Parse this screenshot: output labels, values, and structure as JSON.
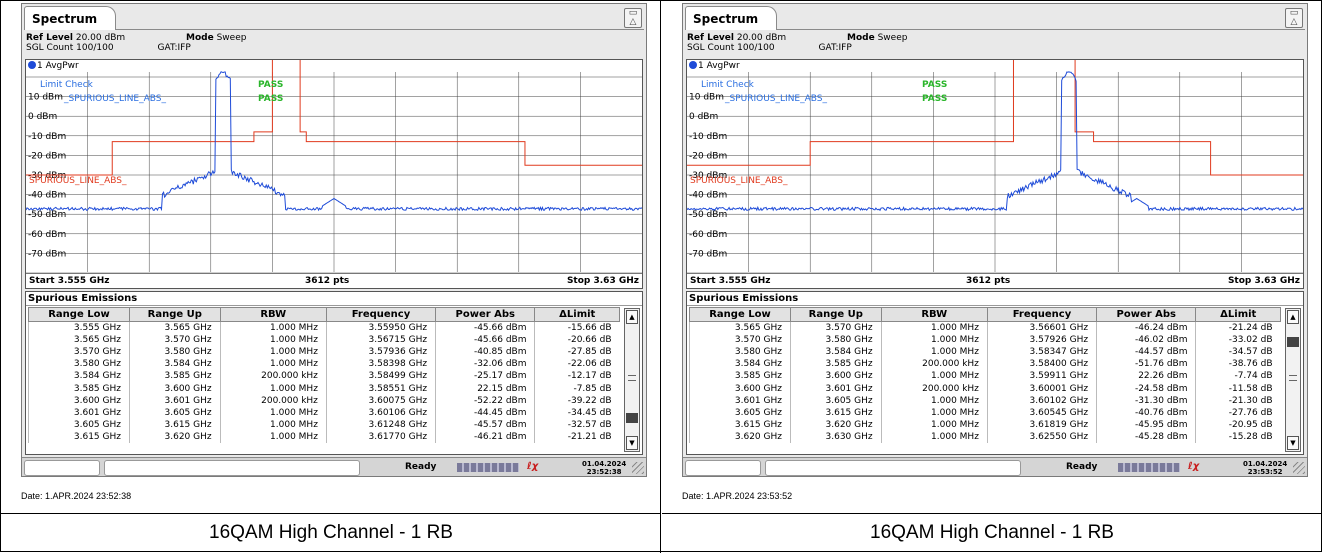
{
  "panels": [
    {
      "tab_title": "Spectrum",
      "ref_level_label": "Ref Level",
      "ref_level_value": "20.00 dBm",
      "mode_label": "Mode",
      "mode_value": "Sweep",
      "sgl_count": "SGL Count 100/100",
      "gat": "GAT:IFP",
      "trace_label": "1 AvgPwr",
      "limit_check": "Limit Check",
      "limit_check_status": "PASS",
      "limit_line_name": "_SPURIOUS_LINE_ABS_",
      "limit_line_status": "PASS",
      "line_label": "SPURIOUS_LINE_ABS_",
      "y_ticks": [
        "10 dBm",
        "0 dBm",
        "-10 dBm",
        "-20 dBm",
        "-30 dBm",
        "-40 dBm",
        "-50 dBm",
        "-60 dBm",
        "-70 dBm"
      ],
      "start": "Start 3.555 GHz",
      "pts": "3612 pts",
      "stop": "Stop 3.63 GHz",
      "table_title": "Spurious Emissions",
      "columns": [
        "Range Low",
        "Range Up",
        "RBW",
        "Frequency",
        "Power Abs",
        "ΔLimit"
      ],
      "rows": [
        [
          "3.555 GHz",
          "3.565 GHz",
          "1.000 MHz",
          "3.55950 GHz",
          "-45.66 dBm",
          "-15.66 dB"
        ],
        [
          "3.565 GHz",
          "3.570 GHz",
          "1.000 MHz",
          "3.56715 GHz",
          "-45.66 dBm",
          "-20.66 dB"
        ],
        [
          "3.570 GHz",
          "3.580 GHz",
          "1.000 MHz",
          "3.57936 GHz",
          "-40.85 dBm",
          "-27.85 dB"
        ],
        [
          "3.580 GHz",
          "3.584 GHz",
          "1.000 MHz",
          "3.58398 GHz",
          "-32.06 dBm",
          "-22.06 dB"
        ],
        [
          "3.584 GHz",
          "3.585 GHz",
          "200.000 kHz",
          "3.58499 GHz",
          "-25.17 dBm",
          "-12.17 dB"
        ],
        [
          "3.585 GHz",
          "3.600 GHz",
          "1.000 MHz",
          "3.58551 GHz",
          "22.15 dBm",
          "-7.85 dB"
        ],
        [
          "3.600 GHz",
          "3.601 GHz",
          "200.000 kHz",
          "3.60075 GHz",
          "-52.22 dBm",
          "-39.22 dB"
        ],
        [
          "3.601 GHz",
          "3.605 GHz",
          "1.000 MHz",
          "3.60106 GHz",
          "-44.45 dBm",
          "-34.45 dB"
        ],
        [
          "3.605 GHz",
          "3.615 GHz",
          "1.000 MHz",
          "3.61248 GHz",
          "-45.57 dBm",
          "-32.57 dB"
        ],
        [
          "3.615 GHz",
          "3.620 GHz",
          "1.000 MHz",
          "3.61770 GHz",
          "-46.21 dBm",
          "-21.21 dB"
        ]
      ],
      "scroll_thumb_fraction": 0.85,
      "status": "Ready",
      "date": "01.04.2024",
      "time": "23:52:38",
      "date_line": "Date: 1.APR.2024  23:52:38",
      "caption": "16QAM High Channel - 1 RB",
      "peak_pos_fraction": 0.32,
      "peak_power_dbm": 22.15
    },
    {
      "tab_title": "Spectrum",
      "ref_level_label": "Ref Level",
      "ref_level_value": "20.00 dBm",
      "mode_label": "Mode",
      "mode_value": "Sweep",
      "sgl_count": "SGL Count 100/100",
      "gat": "GAT:IFP",
      "trace_label": "1 AvgPwr",
      "limit_check": "Limit Check",
      "limit_check_status": "PASS",
      "limit_line_name": "_SPURIOUS_LINE_ABS_",
      "limit_line_status": "PASS",
      "line_label": "SPURIOUS_LINE_ABS_",
      "y_ticks": [
        "10 dBm",
        "0 dBm",
        "-10 dBm",
        "-20 dBm",
        "-30 dBm",
        "-40 dBm",
        "-50 dBm",
        "-60 dBm",
        "-70 dBm"
      ],
      "start": "Start 3.555 GHz",
      "pts": "3612 pts",
      "stop": "Stop 3.63 GHz",
      "table_title": "Spurious Emissions",
      "columns": [
        "Range Low",
        "Range Up",
        "RBW",
        "Frequency",
        "Power Abs",
        "ΔLimit"
      ],
      "rows": [
        [
          "3.565 GHz",
          "3.570 GHz",
          "1.000 MHz",
          "3.56601 GHz",
          "-46.24 dBm",
          "-21.24 dB"
        ],
        [
          "3.570 GHz",
          "3.580 GHz",
          "1.000 MHz",
          "3.57926 GHz",
          "-46.02 dBm",
          "-33.02 dB"
        ],
        [
          "3.580 GHz",
          "3.584 GHz",
          "1.000 MHz",
          "3.58347 GHz",
          "-44.57 dBm",
          "-34.57 dB"
        ],
        [
          "3.584 GHz",
          "3.585 GHz",
          "200.000 kHz",
          "3.58400 GHz",
          "-51.76 dBm",
          "-38.76 dB"
        ],
        [
          "3.585 GHz",
          "3.600 GHz",
          "1.000 MHz",
          "3.59911 GHz",
          "22.26 dBm",
          "-7.74 dB"
        ],
        [
          "3.600 GHz",
          "3.601 GHz",
          "200.000 kHz",
          "3.60001 GHz",
          "-24.58 dBm",
          "-11.58 dB"
        ],
        [
          "3.601 GHz",
          "3.605 GHz",
          "1.000 MHz",
          "3.60102 GHz",
          "-31.30 dBm",
          "-21.30 dB"
        ],
        [
          "3.605 GHz",
          "3.615 GHz",
          "1.000 MHz",
          "3.60545 GHz",
          "-40.76 dBm",
          "-27.76 dB"
        ],
        [
          "3.615 GHz",
          "3.620 GHz",
          "1.000 MHz",
          "3.61819 GHz",
          "-45.95 dBm",
          "-20.95 dB"
        ],
        [
          "3.620 GHz",
          "3.630 GHz",
          "1.000 MHz",
          "3.62550 GHz",
          "-45.28 dBm",
          "-15.28 dB"
        ]
      ],
      "scroll_thumb_fraction": 0.12,
      "status": "Ready",
      "date": "01.04.2024",
      "time": "23:53:52",
      "date_line": "Date: 1.APR.2024  23:53:52",
      "caption": "16QAM High Channel - 1 RB",
      "peak_pos_fraction": 0.62,
      "peak_power_dbm": 22.26
    }
  ],
  "colors": {
    "trace": "#1e4bd8",
    "limit_line": "#e03a1e",
    "pass": "#2ab52a",
    "limit_text": "#2a6ee0"
  }
}
